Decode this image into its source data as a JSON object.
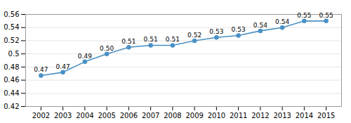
{
  "chart_data": {
    "type": "line",
    "x": [
      2002,
      2003,
      2004,
      2005,
      2006,
      2007,
      2008,
      2009,
      2010,
      2011,
      2012,
      2013,
      2014,
      2015
    ],
    "values": [
      0.467,
      0.472,
      0.488,
      0.5,
      0.51,
      0.513,
      0.513,
      0.52,
      0.525,
      0.528,
      0.535,
      0.54,
      0.55,
      0.55
    ],
    "value_labels": [
      "0.47",
      "0.47",
      "0.49",
      "0.50",
      "0.51",
      "0.51",
      "0.51",
      "0.52",
      "0.53",
      "0.53",
      "0.54",
      "0.54",
      "0.55",
      "0.55"
    ],
    "data_labels": true,
    "color": "#4a90c4",
    "marker": "circle",
    "xlim": [
      2001.3,
      2015.7
    ],
    "xticks": [
      2002,
      2003,
      2004,
      2005,
      2006,
      2007,
      2008,
      2009,
      2010,
      2011,
      2012,
      2013,
      2014,
      2015
    ],
    "ylim": [
      0.42,
      0.56
    ],
    "yticks": [
      0.42,
      0.44,
      0.46,
      0.48,
      0.5,
      0.52,
      0.54,
      0.56
    ],
    "grid": "y"
  }
}
